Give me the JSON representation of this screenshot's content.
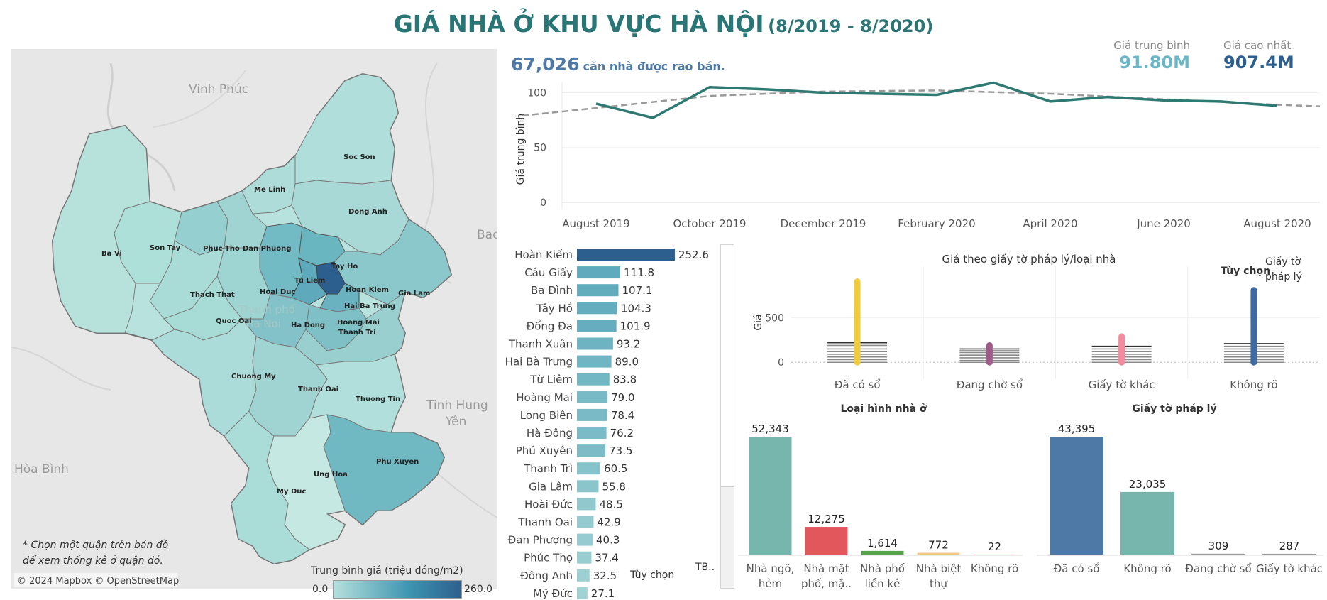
{
  "title": {
    "main": "GIÁ NHÀ Ở KHU VỰC HÀ NỘI",
    "period": "(8/2019 - 8/2020)"
  },
  "listings": {
    "count": "67,026",
    "text": "căn nhà được rao bán."
  },
  "kpis": [
    {
      "label": "Giá trung bình",
      "value": "91.80M",
      "color": "#6cb7c7"
    },
    {
      "label": "Giá cao nhất",
      "value": "907.4M",
      "color": "#2d5f8e"
    }
  ],
  "map": {
    "region_labels": [
      "Vinh Phúc",
      "Bac",
      "Tinh Hung",
      "Yên",
      "Hòa Bình",
      "Thanh phố",
      "Ha Noi"
    ],
    "districts": [
      "Soc Son",
      "Me Linh",
      "Dong Anh",
      "Ba Vi",
      "Son Tay",
      "Phuc Tho",
      "Dan Phuong",
      "Tay Ho",
      "Tu Liem",
      "Hoai Duc",
      "Hoan Kiem",
      "Gia Lam",
      "Hai Ba Trung",
      "Thach That",
      "Quoc Oai",
      "Ha Dong",
      "Hoang Mai",
      "Thanh Tri",
      "Chuong My",
      "Thanh Oai",
      "Thuong Tin",
      "Phu Xuyen",
      "Ung Hoa",
      "My Duc"
    ],
    "note_line1": "* Chọn một quận trên bản đồ",
    "note_line2": "để xem thống kê ở quận đó.",
    "attribution": "© 2024 Mapbox © OpenStreetMap",
    "legend": {
      "title": "Trung bình giá (triệu đồng/m2)",
      "min": "0.0",
      "max": "260.0",
      "color_low": "#b6e0dc",
      "color_high": "#2d5f8e"
    }
  },
  "controls": {
    "option_label": "Tùy chọn",
    "tb_label": "TB.."
  },
  "chart_data": [
    {
      "type": "line",
      "ylabel": "Giá trung bình",
      "ylim": [
        0,
        110
      ],
      "yticks": [
        0,
        50,
        100
      ],
      "xticks": [
        "August 2019",
        "October 2019",
        "December 2019",
        "February 2020",
        "April 2020",
        "June 2020",
        "August 2020"
      ],
      "series": [
        {
          "values": [
            [
              1,
              90
            ],
            [
              2,
              77
            ],
            [
              3,
              105
            ],
            [
              4,
              103
            ],
            [
              5,
              100
            ],
            [
              6,
              99
            ],
            [
              7,
              98
            ],
            [
              8,
              109
            ],
            [
              9,
              92
            ],
            [
              10,
              96
            ],
            [
              11,
              93
            ],
            [
              12,
              92
            ],
            [
              13,
              88
            ]
          ],
          "color": "#2e7a72"
        }
      ],
      "trend": {
        "values": [
          [
            -0.3,
            79
          ],
          [
            1,
            86
          ],
          [
            3,
            97
          ],
          [
            5,
            101
          ],
          [
            7,
            102
          ],
          [
            9,
            99
          ],
          [
            11,
            94
          ],
          [
            13,
            89
          ],
          [
            14,
            87
          ]
        ],
        "color": "#9a9a9a",
        "style": "dashed"
      }
    },
    {
      "type": "bar",
      "orientation": "horizontal",
      "categories": [
        "Hoàn Kiếm",
        "Cầu Giấy",
        "Ba Đình",
        "Tây Hồ",
        "Đống Đa",
        "Thanh Xuân",
        "Hai Bà Trưng",
        "Từ Liêm",
        "Hoàng Mai",
        "Long Biên",
        "Hà Đông",
        "Phú Xuyên",
        "Thanh Trì",
        "Gia Lâm",
        "Hoài Đức",
        "Thanh Oai",
        "Đan Phượng",
        "Phúc Thọ",
        "Đông Anh",
        "Mỹ Đức"
      ],
      "values": [
        252.6,
        111.8,
        107.1,
        104.3,
        101.9,
        93.2,
        89.0,
        83.8,
        79.0,
        78.4,
        76.2,
        73.5,
        60.5,
        55.8,
        48.5,
        42.9,
        40.3,
        37.4,
        32.5,
        27.1
      ],
      "labels": [
        "252.6",
        "111.8",
        "107.1",
        "104.3",
        "101.9",
        "93.2",
        "89.0",
        "83.8",
        "79.0",
        "78.4",
        "76.2",
        "73.5",
        "60.5",
        "55.8",
        "48.5",
        "42.9",
        "40.3",
        "37.4",
        "32.5",
        "27.1"
      ],
      "xlim": [
        0,
        260
      ]
    },
    {
      "type": "scatter",
      "title": "Giá theo giấy tờ pháp lý/loại nhà",
      "ylabel": "Giá",
      "yticks": [
        0,
        500
      ],
      "ylim": [
        -30,
        920
      ],
      "legend_title": "Giấy tờ pháp lý",
      "option_label": "Tùy chọn",
      "categories": [
        "Đã có sổ",
        "Đang chờ sổ",
        "Giấy tờ khác",
        "Không rõ"
      ],
      "colors": [
        "#f0cb3c",
        "#a05a8a",
        "#f28b9c",
        "#3f6aa1"
      ],
      "max_values": [
        907,
        190,
        290,
        810
      ],
      "box_lines": [
        [
          220,
          190,
          150,
          120,
          90,
          60,
          30,
          0
        ],
        [
          150,
          130,
          110,
          80,
          50,
          20,
          0
        ],
        [
          180,
          150,
          120,
          90,
          60,
          30,
          0
        ],
        [
          210,
          180,
          150,
          120,
          90,
          60,
          30,
          0
        ]
      ]
    },
    {
      "type": "bar",
      "title": "Loại hình nhà ở",
      "categories": [
        "Nhà ngõ, hẻm",
        "Nhà mặt phố, mặ..",
        "Nhà phố liền kề",
        "Nhà biệt thự",
        "Không rõ"
      ],
      "values": [
        52343,
        12275,
        1614,
        772,
        22
      ],
      "labels": [
        "52,343",
        "12,275",
        "1,614",
        "772",
        "22"
      ],
      "colors": [
        "#76b6ad",
        "#e1575c",
        "#59a14f",
        "#f1c88a",
        "#ff9da7"
      ]
    },
    {
      "type": "bar",
      "title": "Giấy tờ pháp lý",
      "categories": [
        "Đã có sổ",
        "Không rõ",
        "Đang chờ sổ",
        "Giấy tờ khác"
      ],
      "values": [
        43395,
        23035,
        309,
        287
      ],
      "labels": [
        "43,395",
        "23,035",
        "309",
        "287"
      ],
      "colors": [
        "#4e79a7",
        "#76b6ad",
        "#9c9c9c",
        "#9c9c9c"
      ]
    }
  ]
}
